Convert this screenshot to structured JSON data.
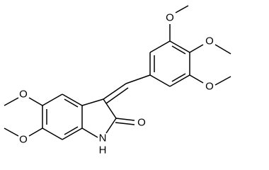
{
  "atoms": [
    {
      "label": "O"
    },
    {
      "label": "O"
    },
    {
      "label": "O"
    },
    {
      "label": "O"
    },
    {
      "label": "O"
    },
    {
      "label": "O"
    },
    {
      "label": "N"
    },
    {
      "label": "H"
    }
  ]
}
